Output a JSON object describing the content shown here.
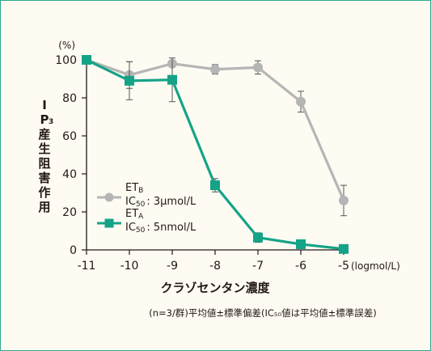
{
  "chart_data": {
    "type": "line",
    "y_unit": "(%)",
    "ylabel": "IP₃産生阻害作用",
    "xlabel": "クラゾセンタン濃度",
    "x_unit": "(logmol/L)",
    "x": [
      -11,
      -10,
      -9,
      -8,
      -7,
      -6,
      -5
    ],
    "xlim": [
      -11,
      -5
    ],
    "ylim": [
      0,
      100
    ],
    "yticks": [
      0,
      20,
      40,
      60,
      80,
      100
    ],
    "series": [
      {
        "name": "ETB",
        "name_main": "ET",
        "name_sub": "B",
        "ic50_label": "IC",
        "ic50_sub": "50",
        "ic50_value": ": 3μmol/L",
        "color": "#b5b5b5",
        "marker": "circle",
        "values": [
          100,
          92,
          98,
          95,
          96,
          78,
          26
        ],
        "error": [
          0,
          7,
          0,
          2.5,
          3.5,
          5.5,
          8
        ]
      },
      {
        "name": "ETA",
        "name_main": "ET",
        "name_sub": "A",
        "ic50_label": "IC",
        "ic50_sub": "50",
        "ic50_value": ": 5nmol/L",
        "color": "#15a388",
        "marker": "square",
        "values": [
          100,
          89,
          89.5,
          34,
          6.5,
          3,
          0.5
        ],
        "error": [
          0,
          10,
          11.5,
          3.5,
          2.5,
          0,
          0
        ]
      }
    ],
    "note": "(n=3/群)平均値±標準偏差(IC₅₀値は平均値±標準誤差)"
  }
}
